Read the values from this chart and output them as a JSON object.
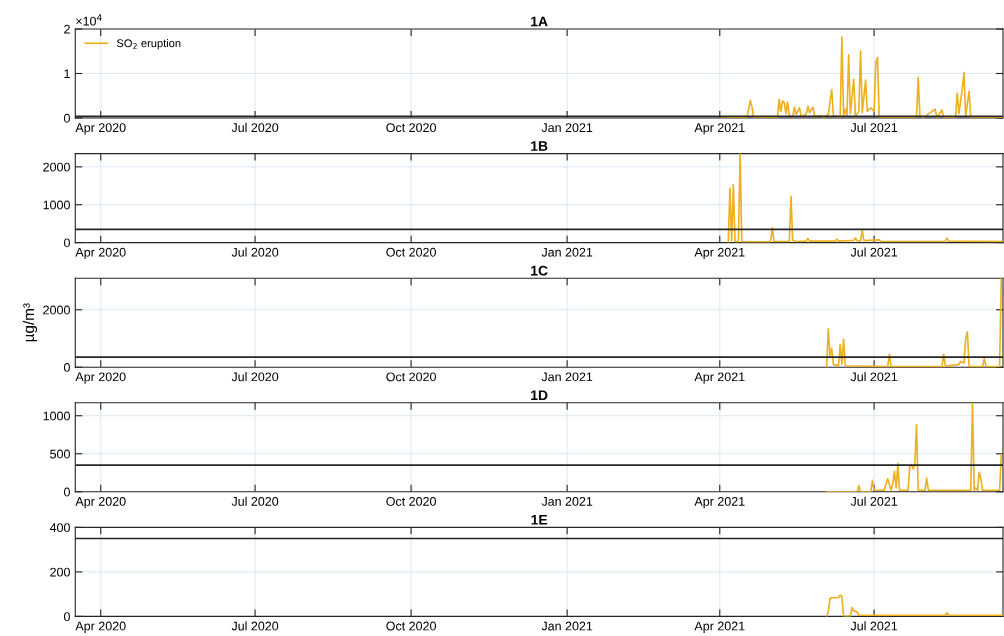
{
  "chart_data": [
    {
      "type": "line",
      "title": "1A",
      "xlim": [
        "2020-03-17",
        "2021-09-15"
      ],
      "xticks": [
        {
          "value": "2020-04-01",
          "label": "Apr 2020"
        },
        {
          "value": "2020-07-01",
          "label": "Jul 2020"
        },
        {
          "value": "2020-10-01",
          "label": "Oct 2020"
        },
        {
          "value": "2021-01-01",
          "label": "Jan 2021"
        },
        {
          "value": "2021-04-01",
          "label": "Apr 2021"
        },
        {
          "value": "2021-07-01",
          "label": "Jul 2021"
        }
      ],
      "ylim": [
        0,
        2
      ],
      "yticks": [
        0,
        1,
        2
      ],
      "annotations": [
        "×10$^{4}$"
      ],
      "grid": true,
      "legend": "top left",
      "ref_lines": [
        {
          "axis": "y",
          "value": 0.035,
          "color": "#262626"
        }
      ],
      "series": [
        {
          "name": "SO$_{2}$ eruption",
          "color": "#edb120",
          "x": [
            "2021-04-02",
            "2021-04-17",
            "2021-04-19",
            "2021-04-20",
            "2021-04-21",
            "2021-05-05",
            "2021-05-06",
            "2021-05-07",
            "2021-05-08",
            "2021-05-09",
            "2021-05-10",
            "2021-05-11",
            "2021-05-12",
            "2021-05-14",
            "2021-05-15",
            "2021-05-16",
            "2021-05-18",
            "2021-05-19",
            "2021-05-22",
            "2021-05-23",
            "2021-05-24",
            "2021-05-26",
            "2021-05-27",
            "2021-05-31",
            "2021-06-01",
            "2021-06-04",
            "2021-06-06",
            "2021-06-07",
            "2021-06-11",
            "2021-06-12",
            "2021-06-13",
            "2021-06-14",
            "2021-06-15",
            "2021-06-16",
            "2021-06-17",
            "2021-06-19",
            "2021-06-20",
            "2021-06-22",
            "2021-06-23",
            "2021-06-24",
            "2021-06-26",
            "2021-06-27",
            "2021-06-29",
            "2021-07-01",
            "2021-07-02",
            "2021-07-03",
            "2021-07-04",
            "2021-07-26",
            "2021-07-27",
            "2021-07-28",
            "2021-07-30",
            "2021-08-06",
            "2021-08-07",
            "2021-08-10",
            "2021-08-11",
            "2021-08-18",
            "2021-08-19",
            "2021-08-20",
            "2021-08-22",
            "2021-08-23",
            "2021-08-24",
            "2021-08-26",
            "2021-08-27",
            "2021-09-15"
          ],
          "values": [
            0,
            0.01,
            0.39,
            0.25,
            0.01,
            0.01,
            0.42,
            0.15,
            0.38,
            0.35,
            0.1,
            0.36,
            0.05,
            0.03,
            0.24,
            0.08,
            0.23,
            0.03,
            0.09,
            0.26,
            0.12,
            0.24,
            0.03,
            0.05,
            0.01,
            0.08,
            0.64,
            0.05,
            0.02,
            1.82,
            0.05,
            0.2,
            0.05,
            1.42,
            0.1,
            0.87,
            0.03,
            0.15,
            1.51,
            0.12,
            0.85,
            0.15,
            0.23,
            0.15,
            1.24,
            1.36,
            0.02,
            0.01,
            0.91,
            0.06,
            0.01,
            0.2,
            0.01,
            0.18,
            0.01,
            0.02,
            0.56,
            0.1,
            0.66,
            1.02,
            0.04,
            0.6,
            0.01,
            0.01
          ]
        }
      ]
    },
    {
      "type": "line",
      "title": "1B",
      "xlim": [
        "2020-03-17",
        "2021-09-15"
      ],
      "xticks": [
        {
          "value": "2020-04-01",
          "label": "Apr 2020"
        },
        {
          "value": "2020-07-01",
          "label": "Jul 2020"
        },
        {
          "value": "2020-10-01",
          "label": "Oct 2020"
        },
        {
          "value": "2021-01-01",
          "label": "Jan 2021"
        },
        {
          "value": "2021-04-01",
          "label": "Apr 2021"
        },
        {
          "value": "2021-07-01",
          "label": "Jul 2021"
        }
      ],
      "ylim": [
        0,
        2350
      ],
      "yticks": [
        0,
        1000,
        2000
      ],
      "grid": true,
      "ref_lines": [
        {
          "axis": "y",
          "value": 350,
          "color": "#262626"
        }
      ],
      "series": [
        {
          "color": "#edb120",
          "x": [
            "2021-04-06",
            "2021-04-07",
            "2021-04-08",
            "2021-04-09",
            "2021-04-10",
            "2021-04-12",
            "2021-04-13",
            "2021-04-14",
            "2021-05-01",
            "2021-05-02",
            "2021-05-03",
            "2021-05-12",
            "2021-05-13",
            "2021-05-14",
            "2021-05-16",
            "2021-05-22",
            "2021-05-23",
            "2021-05-24",
            "2021-06-08",
            "2021-06-09",
            "2021-06-10",
            "2021-06-19",
            "2021-06-20",
            "2021-06-21",
            "2021-06-23",
            "2021-06-24",
            "2021-06-25",
            "2021-07-04",
            "2021-07-05",
            "2021-08-12",
            "2021-08-13",
            "2021-08-14",
            "2021-09-15"
          ],
          "values": [
            0,
            1440,
            50,
            1530,
            30,
            20,
            2350,
            20,
            20,
            390,
            30,
            30,
            1220,
            60,
            30,
            40,
            110,
            40,
            40,
            90,
            40,
            60,
            120,
            50,
            40,
            320,
            50,
            70,
            30,
            30,
            120,
            40,
            30
          ]
        }
      ]
    },
    {
      "type": "line",
      "title": "1C",
      "ylabel": "µg/m³",
      "xlim": [
        "2020-03-17",
        "2021-09-15"
      ],
      "xticks": [
        {
          "value": "2020-04-01",
          "label": "Apr 2020"
        },
        {
          "value": "2020-07-01",
          "label": "Jul 2020"
        },
        {
          "value": "2020-10-01",
          "label": "Oct 2020"
        },
        {
          "value": "2021-01-01",
          "label": "Jan 2021"
        },
        {
          "value": "2021-04-01",
          "label": "Apr 2021"
        },
        {
          "value": "2021-07-01",
          "label": "Jul 2021"
        }
      ],
      "ylim": [
        0,
        3100
      ],
      "yticks": [
        0,
        2000
      ],
      "grid": true,
      "ref_lines": [
        {
          "axis": "y",
          "value": 350,
          "color": "#262626"
        }
      ],
      "series": [
        {
          "color": "#edb120",
          "x": [
            "2021-06-03",
            "2021-06-04",
            "2021-06-05",
            "2021-06-06",
            "2021-06-07",
            "2021-06-10",
            "2021-06-11",
            "2021-06-12",
            "2021-06-13",
            "2021-06-14",
            "2021-07-09",
            "2021-07-10",
            "2021-07-11",
            "2021-08-10",
            "2021-08-11",
            "2021-08-12",
            "2021-08-20",
            "2021-08-21",
            "2021-08-23",
            "2021-08-24",
            "2021-08-25",
            "2021-08-26",
            "2021-09-03",
            "2021-09-04",
            "2021-09-05",
            "2021-09-13",
            "2021-09-14"
          ],
          "values": [
            0,
            1340,
            400,
            650,
            100,
            50,
            790,
            100,
            970,
            50,
            20,
            450,
            20,
            20,
            450,
            30,
            100,
            200,
            150,
            1020,
            1230,
            30,
            20,
            300,
            20,
            20,
            3100
          ]
        }
      ]
    },
    {
      "type": "line",
      "title": "1D",
      "xlim": [
        "2020-03-17",
        "2021-09-15"
      ],
      "xticks": [
        {
          "value": "2020-04-01",
          "label": "Apr 2020"
        },
        {
          "value": "2020-07-01",
          "label": "Jul 2020"
        },
        {
          "value": "2020-10-01",
          "label": "Oct 2020"
        },
        {
          "value": "2021-01-01",
          "label": "Jan 2021"
        },
        {
          "value": "2021-04-01",
          "label": "Apr 2021"
        },
        {
          "value": "2021-07-01",
          "label": "Jul 2021"
        }
      ],
      "ylim": [
        0,
        1170
      ],
      "yticks": [
        0,
        500,
        1000
      ],
      "grid": true,
      "ref_lines": [
        {
          "axis": "y",
          "value": 350,
          "color": "#262626"
        }
      ],
      "series": [
        {
          "color": "#edb120",
          "x": [
            "2021-06-03",
            "2021-06-21",
            "2021-06-22",
            "2021-06-23",
            "2021-06-29",
            "2021-06-30",
            "2021-07-01",
            "2021-07-07",
            "2021-07-08",
            "2021-07-09",
            "2021-07-10",
            "2021-07-11",
            "2021-07-12",
            "2021-07-13",
            "2021-07-14",
            "2021-07-15",
            "2021-07-16",
            "2021-07-21",
            "2021-07-22",
            "2021-07-23",
            "2021-07-24",
            "2021-07-25",
            "2021-07-26",
            "2021-07-27",
            "2021-07-31",
            "2021-08-01",
            "2021-08-02",
            "2021-08-27",
            "2021-08-28",
            "2021-08-29",
            "2021-08-30",
            "2021-08-31",
            "2021-09-01",
            "2021-09-02",
            "2021-09-03",
            "2021-09-13",
            "2021-09-14"
          ],
          "values": [
            0,
            0,
            80,
            0,
            0,
            150,
            20,
            20,
            100,
            170,
            100,
            20,
            100,
            270,
            50,
            370,
            20,
            20,
            330,
            360,
            300,
            360,
            880,
            20,
            20,
            180,
            20,
            20,
            1170,
            20,
            50,
            20,
            260,
            160,
            20,
            20,
            490
          ]
        }
      ]
    },
    {
      "type": "line",
      "title": "1E",
      "xlim": [
        "2020-03-17",
        "2021-09-15"
      ],
      "xticks": [
        {
          "value": "2020-04-01",
          "label": "Apr 2020"
        },
        {
          "value": "2020-07-01",
          "label": "Jul 2020"
        },
        {
          "value": "2020-10-01",
          "label": "Oct 2020"
        },
        {
          "value": "2021-01-01",
          "label": "Jan 2021"
        },
        {
          "value": "2021-04-01",
          "label": "Apr 2021"
        },
        {
          "value": "2021-07-01",
          "label": "Jul 2021"
        }
      ],
      "ylim": [
        0,
        400
      ],
      "yticks": [
        0,
        200,
        400
      ],
      "grid": true,
      "ref_lines": [
        {
          "axis": "y",
          "value": 350,
          "color": "#262626"
        }
      ],
      "series": [
        {
          "color": "#edb120",
          "x": [
            "2021-06-03",
            "2021-06-04",
            "2021-06-05",
            "2021-06-06",
            "2021-06-10",
            "2021-06-11",
            "2021-06-12",
            "2021-06-13",
            "2021-06-17",
            "2021-06-18",
            "2021-06-19",
            "2021-06-21",
            "2021-06-22",
            "2021-08-12",
            "2021-08-13",
            "2021-08-14",
            "2021-09-15"
          ],
          "values": [
            0,
            20,
            80,
            84,
            84,
            95,
            90,
            0,
            0,
            40,
            25,
            20,
            5,
            5,
            16,
            5,
            5
          ]
        }
      ]
    }
  ]
}
